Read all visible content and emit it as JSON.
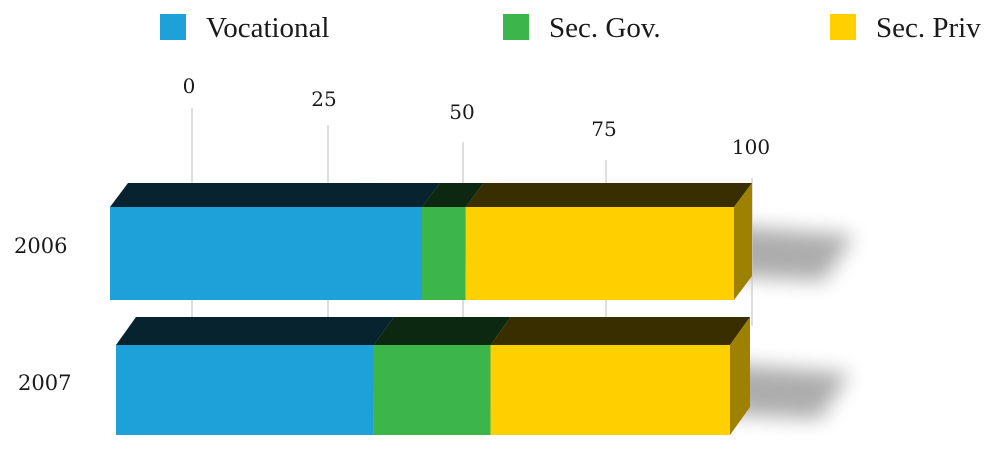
{
  "chart_data": {
    "type": "bar",
    "orientation": "horizontal",
    "stacked": true,
    "categories": [
      "2006",
      "2007"
    ],
    "series": [
      {
        "name": "Vocational",
        "color": "#1ea0d8",
        "values": [
          50,
          42
        ]
      },
      {
        "name": "Sec. Gov.",
        "color": "#3cb54a",
        "values": [
          7,
          19
        ]
      },
      {
        "name": "Sec. Priv",
        "color": "#ffd000",
        "values": [
          43,
          39
        ]
      }
    ],
    "x_ticks": [
      "0",
      "25",
      "50",
      "75",
      "100"
    ],
    "xlim": [
      0,
      100
    ],
    "grid": true,
    "legend_position": "top",
    "title": "",
    "xlabel": "",
    "ylabel": ""
  }
}
